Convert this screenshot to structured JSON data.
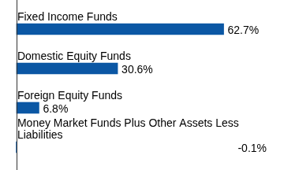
{
  "chart_data": {
    "type": "bar",
    "orientation": "horizontal",
    "categories": [
      "Fixed Income Funds",
      "Domestic Equity Funds",
      "Foreign Equity Funds",
      "Money Market Funds Plus Other Assets Less Liabilities"
    ],
    "values": [
      62.7,
      30.6,
      6.8,
      -0.1
    ],
    "value_labels": [
      "62.7%",
      "30.6%",
      "6.8%",
      "-0.1%"
    ],
    "color": "#0b57a4",
    "xlim": [
      -5,
      80
    ],
    "data_labels": true,
    "tick_labels": false,
    "grid": false
  }
}
